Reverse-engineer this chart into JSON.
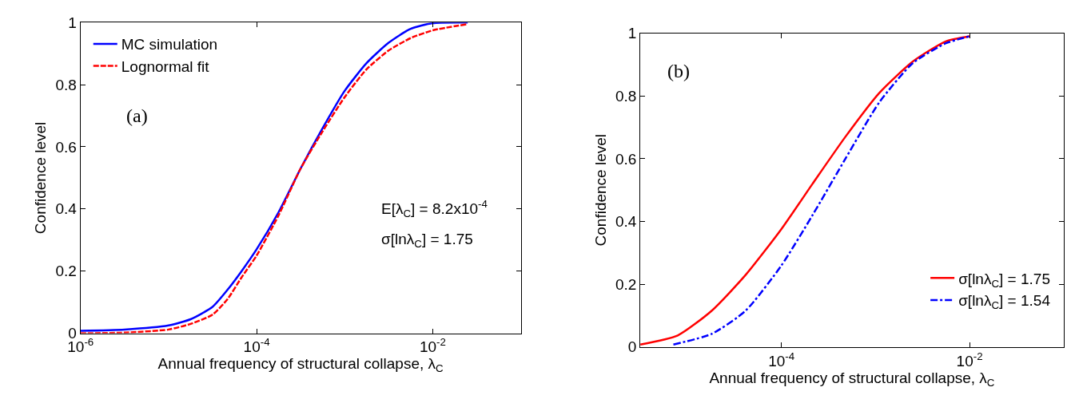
{
  "chart_data": [
    {
      "type": "line",
      "xlabel": "Annual frequency of structural collapse, λ$_{C}$",
      "ylabel": "Confidence level",
      "log": "x",
      "xlim": [
        1e-06,
        0.1
      ],
      "xticks": [
        {
          "value": 1e-06,
          "label": "10$^{-6}$"
        },
        {
          "value": 0.0001,
          "label": "10$^{-4}$"
        },
        {
          "value": 0.01,
          "label": "10$^{-2}$"
        }
      ],
      "ylim": [
        0,
        1
      ],
      "yticks": [
        0,
        0.2,
        0.4,
        0.6,
        0.8,
        1
      ],
      "grid": false,
      "legend": "top left",
      "annotations": [
        "(a)",
        "E[λ$_{C}$] = 8.2x10$^{-4}$",
        "σ[lnλ$_{C}$] = 1.75"
      ],
      "series": [
        {
          "name": "MC simulation",
          "color": "#0000ff",
          "line_style": "solid",
          "x": [
            1e-06,
            3.16e-06,
            1e-05,
            1.78e-05,
            3.16e-05,
            4.68e-05,
            6.76e-05,
            0.0001,
            0.000178,
            0.000316,
            0.000562,
            0.001,
            0.00178,
            0.00316,
            0.00562,
            0.01,
            0.025
          ],
          "values": [
            0.008,
            0.012,
            0.025,
            0.045,
            0.085,
            0.14,
            0.2,
            0.27,
            0.39,
            0.53,
            0.66,
            0.78,
            0.87,
            0.935,
            0.98,
            0.998,
            1.0
          ]
        },
        {
          "name": "Lognormal fit",
          "color": "#ff0000",
          "line_style": "dashed",
          "x": [
            1e-06,
            3.16e-06,
            1e-05,
            1.78e-05,
            3.16e-05,
            4.68e-05,
            6.76e-05,
            0.0001,
            0.000178,
            0.000316,
            0.000562,
            0.001,
            0.00178,
            0.00316,
            0.00562,
            0.01,
            0.025
          ],
          "values": [
            0.0,
            0.002,
            0.012,
            0.03,
            0.06,
            0.11,
            0.18,
            0.25,
            0.38,
            0.53,
            0.65,
            0.76,
            0.85,
            0.91,
            0.95,
            0.975,
            0.995
          ]
        }
      ]
    },
    {
      "type": "line",
      "xlabel": "Annual frequency of structural collapse, λ$_{C}$",
      "ylabel": "Confidence level",
      "log": "x",
      "xlim": [
        3.16e-06,
        0.1
      ],
      "xticks": [
        {
          "value": 0.0001,
          "label": "10$^{-4}$"
        },
        {
          "value": 0.01,
          "label": "10$^{-2}$"
        }
      ],
      "ylim": [
        0,
        1
      ],
      "yticks": [
        0,
        0.2,
        0.4,
        0.6,
        0.8,
        1
      ],
      "grid": false,
      "legend": "bottom right",
      "annotations": [
        "(b)"
      ],
      "series": [
        {
          "name": "σ[lnλ$_{C}$] = 1.75",
          "color": "#ff0000",
          "line_style": "solid",
          "x": [
            3.16e-06,
            7.9e-06,
            1.82e-05,
            4.17e-05,
            0.0001,
            0.000214,
            0.000479,
            0.0011,
            0.0025,
            0.0056,
            0.01
          ],
          "values": [
            0.008,
            0.037,
            0.116,
            0.23,
            0.376,
            0.52,
            0.67,
            0.81,
            0.91,
            0.974,
            0.99
          ]
        },
        {
          "name": "σ[lnλ$_{C}$] = 1.54",
          "color": "#0000ff",
          "line_style": "dashdot",
          "x": [
            7.1e-06,
            1.82e-05,
            4.17e-05,
            0.0001,
            0.000214,
            0.000479,
            0.0011,
            0.0025,
            0.0056,
            0.01
          ],
          "values": [
            0.008,
            0.042,
            0.116,
            0.26,
            0.42,
            0.6,
            0.78,
            0.905,
            0.968,
            0.99
          ]
        }
      ]
    }
  ]
}
